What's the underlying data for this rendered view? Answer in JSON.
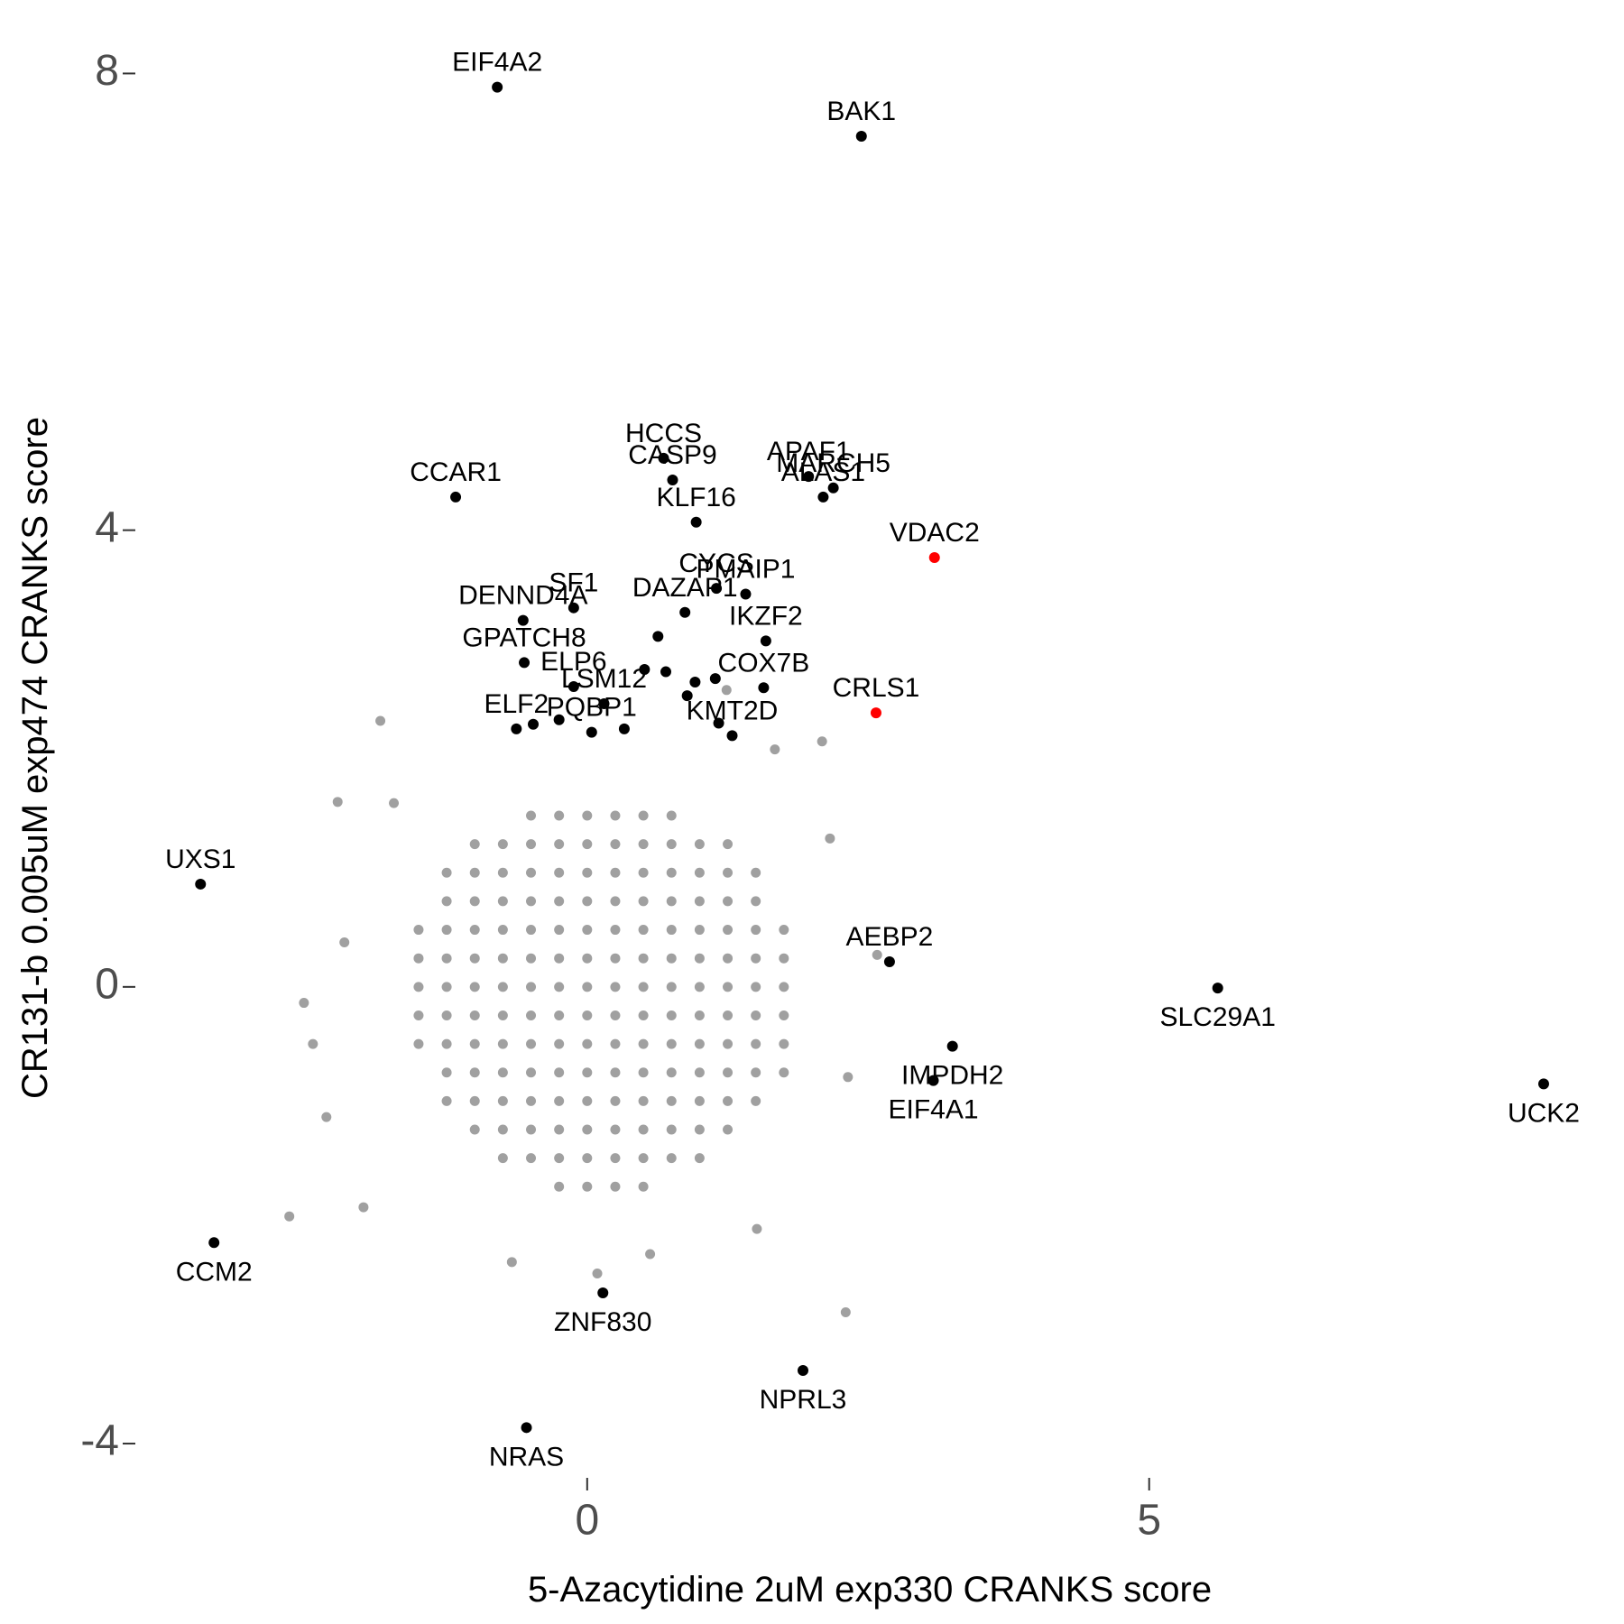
{
  "chart_data": {
    "type": "scatter",
    "x_label": "5-Azacytidine 2uM exp330 CRANKS score",
    "y_label": "CR131-b 0.005uM exp474 CRANKS score",
    "xlim": [
      -4.02,
      9.04
    ],
    "ylim": [
      -4.3,
      8.28
    ],
    "xticks": [
      0,
      5
    ],
    "yticks": [
      -4,
      0,
      4,
      8
    ],
    "series": [
      {
        "color": "#a0a0a0",
        "x": [
          -0.5,
          -0.25,
          0,
          0.25,
          0.5,
          0.75,
          -1,
          -0.75,
          -0.5,
          -0.25,
          0,
          0.25,
          0.5,
          0.75,
          1,
          1.25,
          -1.25,
          -1,
          -0.75,
          -0.5,
          -0.25,
          0,
          0.25,
          0.5,
          0.75,
          1,
          1.25,
          1.5,
          -1.25,
          -1,
          -0.75,
          -0.5,
          -0.25,
          0,
          0.25,
          0.5,
          0.75,
          1,
          1.25,
          1.5,
          -1.5,
          -1.25,
          -1,
          -0.75,
          -0.5,
          -0.25,
          0,
          0.25,
          0.5,
          0.75,
          1,
          1.25,
          1.5,
          1.75,
          -1.5,
          -1.25,
          -1,
          -0.75,
          -0.5,
          -0.25,
          0,
          0.25,
          0.5,
          0.75,
          1,
          1.25,
          1.5,
          1.75,
          -1.5,
          -1.25,
          -1,
          -0.75,
          -0.5,
          -0.25,
          0,
          0.25,
          0.5,
          0.75,
          1,
          1.25,
          1.5,
          1.75,
          -1.5,
          -1.25,
          -1,
          -0.75,
          -0.5,
          -0.25,
          0,
          0.25,
          0.5,
          0.75,
          1,
          1.25,
          1.5,
          1.75,
          -1.5,
          -1.25,
          -1,
          -0.75,
          -0.5,
          -0.25,
          0,
          0.25,
          0.5,
          0.75,
          1,
          1.25,
          1.5,
          1.75,
          -1.25,
          -1,
          -0.75,
          -0.5,
          -0.25,
          0,
          0.25,
          0.5,
          0.75,
          1,
          1.25,
          1.5,
          1.75,
          -1.25,
          -1,
          -0.75,
          -0.5,
          -0.25,
          0,
          0.25,
          0.5,
          0.75,
          1,
          1.25,
          1.5,
          -1,
          -0.75,
          -0.5,
          -0.25,
          0,
          0.25,
          0.5,
          0.75,
          1,
          1.25,
          -0.75,
          -0.5,
          -0.25,
          0,
          0.25,
          0.5,
          0.75,
          1,
          -0.25,
          0,
          0.25,
          0.5,
          -1.84,
          -2.22,
          -1.72,
          -2.52,
          -2.44,
          -2.65,
          -1.99,
          -0.67,
          0.09,
          2.3,
          2.32,
          2.58,
          2.16,
          2.09,
          1.24,
          1.67,
          1.51,
          0.56,
          -2.32,
          -2.16
        ],
        "y": [
          1.5,
          1.5,
          1.5,
          1.5,
          1.5,
          1.5,
          1.25,
          1.25,
          1.25,
          1.25,
          1.25,
          1.25,
          1.25,
          1.25,
          1.25,
          1.25,
          1,
          1,
          1,
          1,
          1,
          1,
          1,
          1,
          1,
          1,
          1,
          1,
          0.75,
          0.75,
          0.75,
          0.75,
          0.75,
          0.75,
          0.75,
          0.75,
          0.75,
          0.75,
          0.75,
          0.75,
          0.5,
          0.5,
          0.5,
          0.5,
          0.5,
          0.5,
          0.5,
          0.5,
          0.5,
          0.5,
          0.5,
          0.5,
          0.5,
          0.5,
          0.25,
          0.25,
          0.25,
          0.25,
          0.25,
          0.25,
          0.25,
          0.25,
          0.25,
          0.25,
          0.25,
          0.25,
          0.25,
          0.25,
          0,
          0,
          0,
          0,
          0,
          0,
          0,
          0,
          0,
          0,
          0,
          0,
          0,
          0,
          -0.25,
          -0.25,
          -0.25,
          -0.25,
          -0.25,
          -0.25,
          -0.25,
          -0.25,
          -0.25,
          -0.25,
          -0.25,
          -0.25,
          -0.25,
          -0.25,
          -0.5,
          -0.5,
          -0.5,
          -0.5,
          -0.5,
          -0.5,
          -0.5,
          -0.5,
          -0.5,
          -0.5,
          -0.5,
          -0.5,
          -0.5,
          -0.5,
          -0.75,
          -0.75,
          -0.75,
          -0.75,
          -0.75,
          -0.75,
          -0.75,
          -0.75,
          -0.75,
          -0.75,
          -0.75,
          -0.75,
          -0.75,
          -1,
          -1,
          -1,
          -1,
          -1,
          -1,
          -1,
          -1,
          -1,
          -1,
          -1,
          -1,
          -1.25,
          -1.25,
          -1.25,
          -1.25,
          -1.25,
          -1.25,
          -1.25,
          -1.25,
          -1.25,
          -1.25,
          -1.5,
          -1.5,
          -1.5,
          -1.5,
          -1.5,
          -1.5,
          -1.5,
          -1.5,
          -1.75,
          -1.75,
          -1.75,
          -1.75,
          2.33,
          1.62,
          1.61,
          -0.14,
          -0.5,
          -2.01,
          -1.93,
          -2.41,
          -2.51,
          -2.85,
          -0.79,
          0.28,
          1.3,
          2.15,
          2.6,
          2.08,
          -2.12,
          -2.34,
          -1.14,
          0.39
        ]
      },
      {
        "color": "#000000",
        "labels": [
          "EIF4A2",
          "BAK1",
          "HCCS",
          "CASP9",
          "APAF1",
          "MARCH5",
          "ALAS1",
          "CCAR1",
          "KLF16",
          "CYCS",
          "PMAIP1",
          "IKZF2",
          "SF1",
          "DAZAP1",
          "DENND4A",
          "GPATCH8",
          "ELP6",
          "LSM12",
          "COX7B",
          "ELF2",
          "PQBP1",
          "KMT2D",
          "UXS1",
          "AEBP2",
          "SLC29A1",
          "IMPDH2",
          "EIF4A1",
          "UCK2",
          "CCM2",
          "ZNF830",
          "NPRL3",
          "NRAS",
          null,
          null,
          null,
          null,
          null,
          null,
          null,
          null,
          null,
          null
        ],
        "x": [
          -0.8,
          2.44,
          0.68,
          0.76,
          1.97,
          2.19,
          2.1,
          -1.17,
          0.97,
          1.15,
          1.41,
          1.59,
          -0.12,
          0.87,
          -0.57,
          -0.56,
          -0.12,
          0.15,
          1.57,
          -0.63,
          0.04,
          1.29,
          -3.44,
          2.69,
          5.61,
          3.25,
          3.08,
          8.51,
          -3.32,
          0.14,
          1.92,
          -0.54,
          0.7,
          0.96,
          1.14,
          0.89,
          0.51,
          0.63,
          0.33,
          -0.25,
          -0.48,
          1.17
        ],
        "y": [
          7.88,
          7.45,
          4.63,
          4.44,
          4.47,
          4.37,
          4.29,
          4.29,
          4.07,
          3.49,
          3.44,
          3.03,
          3.32,
          3.28,
          3.21,
          2.84,
          2.63,
          2.48,
          2.62,
          2.26,
          2.23,
          2.2,
          0.9,
          0.22,
          -0.01,
          -0.52,
          -0.82,
          -0.85,
          -2.24,
          -2.68,
          -3.36,
          -3.86,
          2.76,
          2.67,
          2.7,
          2.55,
          2.78,
          3.07,
          2.26,
          2.34,
          2.3,
          2.31
        ]
      },
      {
        "color": "#ff0000",
        "labels": [
          "VDAC2",
          "CRLS1"
        ],
        "x": [
          3.09,
          2.57
        ],
        "y": [
          3.76,
          2.4
        ]
      }
    ]
  }
}
